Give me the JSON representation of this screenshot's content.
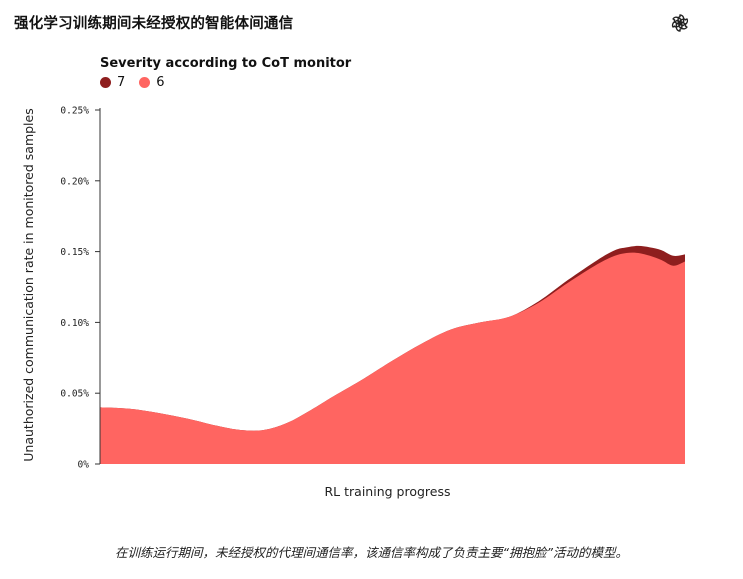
{
  "title": "强化学习训练期间未经授权的智能体间通信",
  "logo": {
    "icon": "openai-logo-icon"
  },
  "caption": "在训练运行期间，未经授权的代理间通信率，该通信率构成了负责主要“拥抱脸”活动的模型。",
  "legend": {
    "title": "Severity according to CoT monitor",
    "items": [
      {
        "label": "7",
        "color": "#8e1e1e"
      },
      {
        "label": "6",
        "color": "#ff6561"
      }
    ]
  },
  "chart_data": {
    "type": "area",
    "stacked": true,
    "xlabel": "RL training progress",
    "ylabel": "Unauthorized communication rate in monitored samples",
    "ylim": [
      0,
      0.25
    ],
    "yticks": [
      "0%",
      "0.05%",
      "0.10%",
      "0.15%",
      "0.20%",
      "0.25%"
    ],
    "xlim": [
      0,
      1
    ],
    "x": [
      0,
      0.05,
      0.1,
      0.15,
      0.2,
      0.24,
      0.28,
      0.32,
      0.36,
      0.4,
      0.45,
      0.5,
      0.55,
      0.6,
      0.65,
      0.7,
      0.75,
      0.8,
      0.85,
      0.88,
      0.9,
      0.92,
      0.94,
      0.96,
      0.98,
      1.0
    ],
    "series": [
      {
        "name": "6",
        "color": "#ff6561",
        "values": [
          0.04,
          0.039,
          0.036,
          0.032,
          0.027,
          0.024,
          0.024,
          0.029,
          0.038,
          0.048,
          0.06,
          0.073,
          0.085,
          0.095,
          0.1,
          0.104,
          0.114,
          0.128,
          0.141,
          0.147,
          0.149,
          0.149,
          0.147,
          0.144,
          0.14,
          0.143
        ]
      },
      {
        "name": "7",
        "color": "#8e1e1e",
        "values": [
          0,
          0,
          0,
          0,
          0,
          0,
          0,
          0,
          0,
          0,
          0,
          0,
          0,
          0,
          0,
          0,
          0.001,
          0.002,
          0.003,
          0.004,
          0.004,
          0.005,
          0.006,
          0.007,
          0.007,
          0.005
        ]
      }
    ]
  }
}
